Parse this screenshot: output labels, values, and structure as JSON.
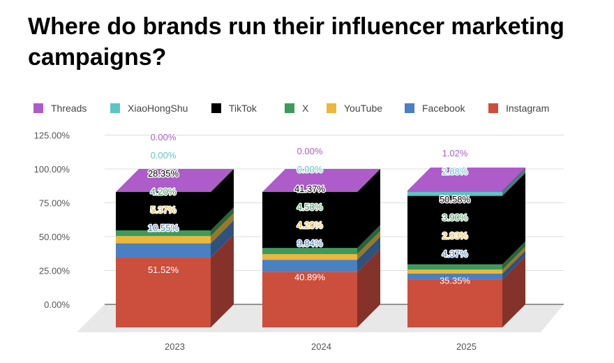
{
  "chart_data": {
    "type": "bar",
    "stacked": true,
    "three_d": true,
    "title": "Where do brands run their influencer marketing campaigns?",
    "categories": [
      "2023",
      "2024",
      "2025"
    ],
    "ylim": [
      0,
      125
    ],
    "yticks": [
      "0.00%",
      "25.00%",
      "50.00%",
      "75.00%",
      "100.00%",
      "125.00%"
    ],
    "grid": true,
    "legend_position": "top",
    "series": [
      {
        "name": "Instagram",
        "color": "#cc4e3c",
        "side": "#85322a",
        "label_color": "#ffffff",
        "values": [
          51.52,
          40.89,
          35.35
        ],
        "labels": [
          "51.52%",
          "40.89%",
          "35.35%"
        ]
      },
      {
        "name": "Facebook",
        "color": "#4a7fc1",
        "side": "#2f527d",
        "label_color": "#4a7fc1",
        "values": [
          10.55,
          9.04,
          4.37
        ],
        "labels": [
          "10.55%",
          "9.04%",
          "4.37%"
        ]
      },
      {
        "name": "YouTube",
        "color": "#ecb73b",
        "side": "#9a7726",
        "label_color": "#ecb73b",
        "values": [
          5.37,
          4.2,
          2.93
        ],
        "labels": [
          "5.37%",
          "4.20%",
          "2.93%"
        ]
      },
      {
        "name": "X",
        "color": "#3e9a5b",
        "side": "#28643b",
        "label_color": "#3e9a5b",
        "values": [
          4.2,
          4.5,
          3.9
        ],
        "labels": [
          "4.20%",
          "4.50%",
          "3.90%"
        ]
      },
      {
        "name": "TikTok",
        "color": "#000000",
        "side": "#000000",
        "label_color": "#000000",
        "values": [
          28.35,
          41.37,
          50.58
        ],
        "labels": [
          "28.35%",
          "41.37%",
          "50.58%"
        ]
      },
      {
        "name": "XiaoHongShu",
        "color": "#5ec4c4",
        "side": "#3d8080",
        "label_color": "#5ec4c4",
        "values": [
          0,
          0,
          2.88
        ],
        "labels": [
          "0.00%",
          "0.00%",
          "2.88%"
        ]
      },
      {
        "name": "Threads",
        "color": "#ad5cc9",
        "side": "#703c83",
        "label_color": "#ad5cc9",
        "values": [
          0,
          0,
          1.02
        ],
        "labels": [
          "0.00%",
          "0.00%",
          "1.02%"
        ]
      }
    ],
    "legend_order": [
      "Threads",
      "XiaoHongShu",
      "TikTok",
      "X",
      "YouTube",
      "Facebook",
      "Instagram"
    ]
  }
}
